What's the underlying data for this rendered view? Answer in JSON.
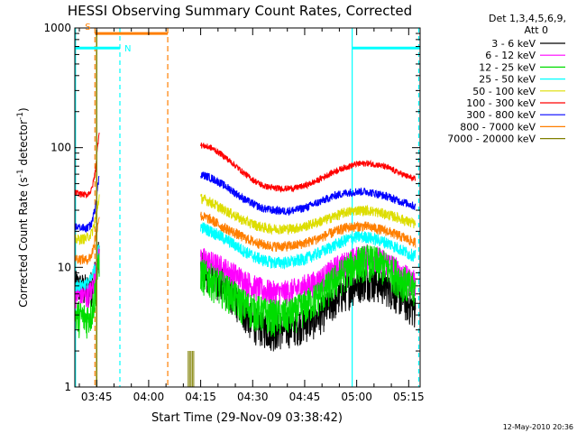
{
  "chart_data": {
    "type": "line",
    "title": "HESSI Observing Summary Count Rates, Corrected",
    "xlabel": "Start Time (29-Nov-09 03:38:42)",
    "ylabel": "Corrected Count Rate (s",
    "ylabel_sup1": "-1",
    "ylabel_mid": " detector",
    "ylabel_sup2": "-1",
    "ylabel_end": ")",
    "yscale": "log",
    "ylim": [
      1,
      1000
    ],
    "xlim_minutes": [
      218.7,
      318.3
    ],
    "x_ticks": [
      {
        "m": 225,
        "label": "03:45"
      },
      {
        "m": 240,
        "label": "04:00"
      },
      {
        "m": 255,
        "label": "04:15"
      },
      {
        "m": 270,
        "label": "04:30"
      },
      {
        "m": 285,
        "label": "04:45"
      },
      {
        "m": 300,
        "label": "05:00"
      },
      {
        "m": 315,
        "label": "05:15"
      }
    ],
    "y_ticks": [
      {
        "v": 1,
        "label": "1"
      },
      {
        "v": 10,
        "label": "10"
      },
      {
        "v": 100,
        "label": "100"
      },
      {
        "v": 1000,
        "label": "1000"
      }
    ],
    "legend": {
      "header1": "Det 1,3,4,5,6,9,",
      "header2": "Att 0",
      "placement": "right"
    },
    "series": [
      {
        "name": "3 - 6 keV",
        "color": "#000000",
        "before": [
          [
            218.8,
            7
          ],
          [
            222,
            6.5
          ],
          [
            223.5,
            7
          ],
          [
            224.5,
            9
          ],
          [
            225.8,
            14
          ]
        ],
        "after": [
          [
            255,
            10
          ],
          [
            258,
            9
          ],
          [
            261,
            7.5
          ],
          [
            264,
            6
          ],
          [
            267,
            4.5
          ],
          [
            270,
            3.5
          ],
          [
            273,
            3.2
          ],
          [
            276,
            3
          ],
          [
            279,
            3.1
          ],
          [
            282,
            3.3
          ],
          [
            285,
            3.5
          ],
          [
            288,
            3.8
          ],
          [
            291,
            4.5
          ],
          [
            294,
            5.5
          ],
          [
            297,
            6.5
          ],
          [
            300,
            7.5
          ],
          [
            303,
            8
          ],
          [
            306,
            7.5
          ],
          [
            309,
            7
          ],
          [
            312,
            6
          ],
          [
            315,
            5
          ],
          [
            317,
            4.5
          ]
        ]
      },
      {
        "name": "6 - 12 keV",
        "color": "#ff00ff",
        "before": [
          [
            218.8,
            6
          ],
          [
            222,
            5.8
          ],
          [
            223.5,
            6.3
          ],
          [
            224.5,
            8.5
          ],
          [
            225.8,
            14
          ]
        ],
        "after": [
          [
            255,
            12
          ],
          [
            258,
            11
          ],
          [
            261,
            10
          ],
          [
            264,
            9
          ],
          [
            267,
            8
          ],
          [
            270,
            7
          ],
          [
            273,
            6.5
          ],
          [
            276,
            6.2
          ],
          [
            279,
            6.2
          ],
          [
            282,
            6.5
          ],
          [
            285,
            7
          ],
          [
            288,
            7.5
          ],
          [
            291,
            8.5
          ],
          [
            294,
            10
          ],
          [
            297,
            11
          ],
          [
            300,
            12
          ],
          [
            303,
            12.5
          ],
          [
            306,
            12
          ],
          [
            309,
            11
          ],
          [
            312,
            9.5
          ],
          [
            315,
            8
          ],
          [
            317,
            7.5
          ]
        ]
      },
      {
        "name": "12 - 25 keV",
        "color": "#00dd00",
        "before": [
          [
            218.8,
            4
          ],
          [
            222,
            3.8
          ],
          [
            223.5,
            4.2
          ],
          [
            224.5,
            6
          ],
          [
            225.8,
            12
          ]
        ],
        "after": [
          [
            255,
            9
          ],
          [
            258,
            8
          ],
          [
            261,
            7
          ],
          [
            264,
            6
          ],
          [
            267,
            5
          ],
          [
            270,
            4.5
          ],
          [
            273,
            4.2
          ],
          [
            276,
            4
          ],
          [
            279,
            4
          ],
          [
            282,
            4.2
          ],
          [
            285,
            4.8
          ],
          [
            288,
            5.5
          ],
          [
            291,
            6.5
          ],
          [
            294,
            8
          ],
          [
            297,
            9.5
          ],
          [
            300,
            11
          ],
          [
            303,
            11.5
          ],
          [
            306,
            11
          ],
          [
            309,
            10
          ],
          [
            312,
            8.5
          ],
          [
            315,
            7
          ],
          [
            317,
            6.5
          ]
        ]
      },
      {
        "name": "25 - 50 keV",
        "color": "#00ffff",
        "before": [
          [
            218.8,
            7
          ],
          [
            222,
            7.3
          ],
          [
            223.5,
            8
          ],
          [
            224.5,
            10
          ],
          [
            225.8,
            16
          ]
        ],
        "after": [
          [
            255,
            22
          ],
          [
            258,
            20
          ],
          [
            261,
            18
          ],
          [
            264,
            16
          ],
          [
            267,
            14
          ],
          [
            270,
            12.5
          ],
          [
            273,
            11.5
          ],
          [
            276,
            11
          ],
          [
            279,
            11
          ],
          [
            282,
            11.2
          ],
          [
            285,
            11.8
          ],
          [
            288,
            12.8
          ],
          [
            291,
            14
          ],
          [
            294,
            15.5
          ],
          [
            297,
            17
          ],
          [
            300,
            18
          ],
          [
            303,
            18
          ],
          [
            306,
            17
          ],
          [
            309,
            16
          ],
          [
            312,
            14.5
          ],
          [
            315,
            13
          ],
          [
            317,
            12.5
          ]
        ]
      },
      {
        "name": "50 - 100 keV",
        "color": "#dddd00",
        "before": [
          [
            218.8,
            17
          ],
          [
            222,
            17.5
          ],
          [
            223.5,
            19
          ],
          [
            224.5,
            24
          ],
          [
            225.8,
            40
          ]
        ],
        "after": [
          [
            255,
            38
          ],
          [
            258,
            35
          ],
          [
            261,
            31
          ],
          [
            264,
            28
          ],
          [
            267,
            25
          ],
          [
            270,
            23
          ],
          [
            273,
            21.5
          ],
          [
            276,
            21
          ],
          [
            279,
            21
          ],
          [
            282,
            21.2
          ],
          [
            285,
            22
          ],
          [
            288,
            23.5
          ],
          [
            291,
            25
          ],
          [
            294,
            27
          ],
          [
            297,
            29
          ],
          [
            300,
            30
          ],
          [
            303,
            30
          ],
          [
            306,
            29
          ],
          [
            309,
            27.5
          ],
          [
            312,
            26
          ],
          [
            315,
            24
          ],
          [
            317,
            23
          ]
        ]
      },
      {
        "name": "100 - 300 keV",
        "color": "#ff0000",
        "before": [
          [
            218.8,
            42
          ],
          [
            222,
            40
          ],
          [
            223.5,
            44
          ],
          [
            224.5,
            60
          ],
          [
            225.8,
            145
          ]
        ],
        "after": [
          [
            255,
            105
          ],
          [
            258,
            100
          ],
          [
            261,
            88
          ],
          [
            264,
            75
          ],
          [
            267,
            63
          ],
          [
            270,
            54
          ],
          [
            273,
            48
          ],
          [
            276,
            46
          ],
          [
            279,
            45.5
          ],
          [
            282,
            46
          ],
          [
            285,
            48
          ],
          [
            288,
            52
          ],
          [
            291,
            58
          ],
          [
            294,
            64
          ],
          [
            297,
            69
          ],
          [
            300,
            73
          ],
          [
            303,
            74
          ],
          [
            306,
            72
          ],
          [
            309,
            68
          ],
          [
            312,
            62
          ],
          [
            315,
            57
          ],
          [
            317,
            54
          ]
        ]
      },
      {
        "name": "300 - 800 keV",
        "color": "#0000ff",
        "before": [
          [
            218.8,
            22
          ],
          [
            222,
            21
          ],
          [
            223.5,
            23
          ],
          [
            224.5,
            31
          ],
          [
            225.8,
            60
          ]
        ],
        "after": [
          [
            255,
            60
          ],
          [
            258,
            56
          ],
          [
            261,
            50
          ],
          [
            264,
            44
          ],
          [
            267,
            38
          ],
          [
            270,
            34
          ],
          [
            273,
            31
          ],
          [
            276,
            30
          ],
          [
            279,
            29.5
          ],
          [
            282,
            30
          ],
          [
            285,
            31.5
          ],
          [
            288,
            34
          ],
          [
            291,
            37
          ],
          [
            294,
            40
          ],
          [
            297,
            42
          ],
          [
            300,
            43
          ],
          [
            303,
            43
          ],
          [
            306,
            41
          ],
          [
            309,
            39
          ],
          [
            312,
            36
          ],
          [
            315,
            34
          ],
          [
            317,
            32
          ]
        ]
      },
      {
        "name": "800 - 7000 keV",
        "color": "#ff7f00",
        "before": [
          [
            218.8,
            12
          ],
          [
            222,
            11.5
          ],
          [
            223.5,
            12.5
          ],
          [
            224.5,
            17
          ],
          [
            225.8,
            28
          ]
        ],
        "after": [
          [
            255,
            27
          ],
          [
            258,
            25
          ],
          [
            261,
            22
          ],
          [
            264,
            20
          ],
          [
            267,
            18
          ],
          [
            270,
            16.5
          ],
          [
            273,
            15.5
          ],
          [
            276,
            15
          ],
          [
            279,
            15
          ],
          [
            282,
            15.2
          ],
          [
            285,
            16
          ],
          [
            288,
            17
          ],
          [
            291,
            18.5
          ],
          [
            294,
            20
          ],
          [
            297,
            21.5
          ],
          [
            300,
            22
          ],
          [
            303,
            22
          ],
          [
            306,
            21
          ],
          [
            309,
            20
          ],
          [
            312,
            18.5
          ],
          [
            315,
            17
          ],
          [
            317,
            16
          ]
        ]
      },
      {
        "name": "7000 - 20000 keV",
        "color": "#808000",
        "before": [],
        "after": []
      }
    ],
    "annotations": {
      "saa_label": "S",
      "night_label": "N",
      "saa_bar_minutes": [
        224.5,
        245.5
      ],
      "saa_level": 900,
      "saa_color": "#ff7f00",
      "night_segments_minutes": [
        [
          218.7,
          231.7
        ],
        [
          298.7,
          318.3
        ]
      ],
      "night_level": 680,
      "night_color": "#00ffff",
      "orange_dashed_minutes": [
        224.5,
        245.5
      ],
      "cyan_lines_minutes": [
        {
          "m": 218.9,
          "dashed": false
        },
        {
          "m": 231.7,
          "dashed": true
        },
        {
          "m": 298.7,
          "dashed": false
        },
        {
          "m": 317.9,
          "dashed": true
        }
      ],
      "olive_spike_minutes": 225.0,
      "olive_ticks_minutes": [
        251.4,
        251.8,
        252.2,
        252.6,
        253.0
      ]
    },
    "grid": false
  },
  "footer": {
    "date_stamp": "12-May-2010 20:36"
  }
}
